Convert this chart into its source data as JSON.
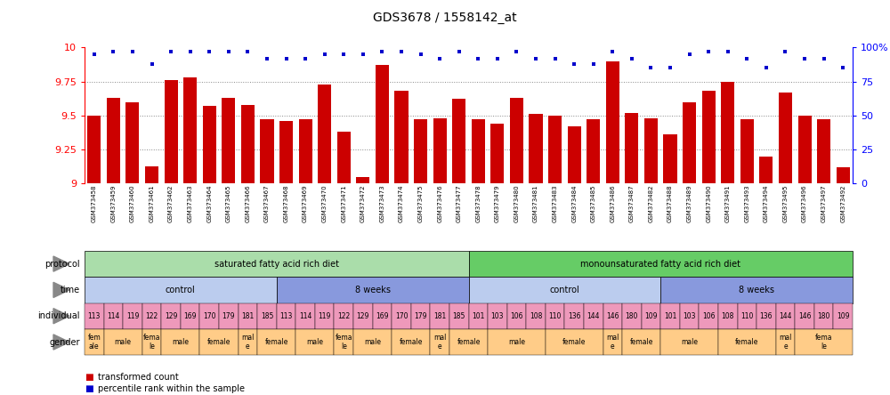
{
  "title": "GDS3678 / 1558142_at",
  "samples": [
    "GSM373458",
    "GSM373459",
    "GSM373460",
    "GSM373461",
    "GSM373462",
    "GSM373463",
    "GSM373464",
    "GSM373465",
    "GSM373466",
    "GSM373467",
    "GSM373468",
    "GSM373469",
    "GSM373470",
    "GSM373471",
    "GSM373472",
    "GSM373473",
    "GSM373474",
    "GSM373475",
    "GSM373476",
    "GSM373477",
    "GSM373478",
    "GSM373479",
    "GSM373480",
    "GSM373481",
    "GSM373483",
    "GSM373484",
    "GSM373485",
    "GSM373486",
    "GSM373487",
    "GSM373482",
    "GSM373488",
    "GSM373489",
    "GSM373490",
    "GSM373491",
    "GSM373493",
    "GSM373494",
    "GSM373495",
    "GSM373496",
    "GSM373497",
    "GSM373492"
  ],
  "bar_values": [
    9.5,
    9.63,
    9.6,
    9.13,
    9.76,
    9.78,
    9.57,
    9.63,
    9.58,
    9.47,
    9.46,
    9.47,
    9.73,
    9.38,
    9.05,
    9.87,
    9.68,
    9.47,
    9.48,
    9.62,
    9.47,
    9.44,
    9.63,
    9.51,
    9.5,
    9.42,
    9.47,
    9.9,
    9.52,
    9.48,
    9.36,
    9.6,
    9.68,
    9.75,
    9.47,
    9.2,
    9.67,
    9.5,
    9.47,
    9.12
  ],
  "percentile_values": [
    95,
    97,
    97,
    88,
    97,
    97,
    97,
    97,
    97,
    92,
    92,
    92,
    95,
    95,
    95,
    97,
    97,
    95,
    92,
    97,
    92,
    92,
    97,
    92,
    92,
    88,
    88,
    97,
    92,
    85,
    85,
    95,
    97,
    97,
    92,
    85,
    97,
    92,
    92,
    85
  ],
  "ylim_left": [
    9.0,
    10.0
  ],
  "ylim_right": [
    0,
    100
  ],
  "yticks_left": [
    9.0,
    9.25,
    9.5,
    9.75,
    10.0
  ],
  "yticks_right": [
    0,
    25,
    50,
    75,
    100
  ],
  "bar_color": "#cc0000",
  "dot_color": "#0000cc",
  "grid_color": "#888888",
  "protocol_groups": [
    {
      "label": "saturated fatty acid rich diet",
      "start": 0,
      "end": 19,
      "color": "#aaddaa"
    },
    {
      "label": "monounsaturated fatty acid rich diet",
      "start": 20,
      "end": 39,
      "color": "#66cc66"
    }
  ],
  "time_groups": [
    {
      "label": "control",
      "start": 0,
      "end": 9,
      "color": "#bbccee"
    },
    {
      "label": "8 weeks",
      "start": 10,
      "end": 19,
      "color": "#8899dd"
    },
    {
      "label": "control",
      "start": 20,
      "end": 29,
      "color": "#bbccee"
    },
    {
      "label": "8 weeks",
      "start": 30,
      "end": 39,
      "color": "#8899dd"
    }
  ],
  "individual_values": [
    "113",
    "114",
    "119",
    "122",
    "129",
    "169",
    "170",
    "179",
    "181",
    "185",
    "113",
    "114",
    "119",
    "122",
    "129",
    "169",
    "170",
    "179",
    "181",
    "185",
    "101",
    "103",
    "106",
    "108",
    "110",
    "136",
    "144",
    "146",
    "180",
    "109",
    "101",
    "103",
    "106",
    "108",
    "110",
    "136",
    "144",
    "146",
    "180",
    "109"
  ],
  "gender_data": [
    {
      "label": "fem\nale",
      "start": 0,
      "end": 0
    },
    {
      "label": "male",
      "start": 1,
      "end": 2
    },
    {
      "label": "fema\nle",
      "start": 3,
      "end": 3
    },
    {
      "label": "male",
      "start": 4,
      "end": 5
    },
    {
      "label": "female",
      "start": 6,
      "end": 7
    },
    {
      "label": "mal\ne",
      "start": 8,
      "end": 8
    },
    {
      "label": "female",
      "start": 9,
      "end": 10
    },
    {
      "label": "male",
      "start": 11,
      "end": 12
    },
    {
      "label": "fema\nle",
      "start": 13,
      "end": 13
    },
    {
      "label": "male",
      "start": 14,
      "end": 15
    },
    {
      "label": "female",
      "start": 16,
      "end": 17
    },
    {
      "label": "mal\ne",
      "start": 18,
      "end": 18
    },
    {
      "label": "female",
      "start": 19,
      "end": 20
    },
    {
      "label": "male",
      "start": 21,
      "end": 23
    },
    {
      "label": "female",
      "start": 24,
      "end": 26
    },
    {
      "label": "mal\ne",
      "start": 27,
      "end": 27
    },
    {
      "label": "female",
      "start": 28,
      "end": 29
    },
    {
      "label": "male",
      "start": 30,
      "end": 32
    },
    {
      "label": "female",
      "start": 33,
      "end": 35
    },
    {
      "label": "mal\ne",
      "start": 36,
      "end": 36
    },
    {
      "label": "fema\nle",
      "start": 37,
      "end": 39
    }
  ],
  "gender_color_male": "#ffcc88",
  "gender_color_female": "#ffcc88",
  "ind_color": "#ee99bb",
  "fig_width": 10.0,
  "fig_height": 4.44
}
